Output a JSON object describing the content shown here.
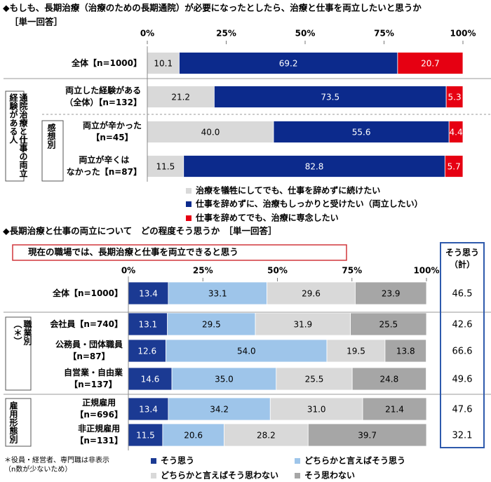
{
  "chart_data": [
    {
      "type": "stacked_bar_horizontal",
      "title": "◆もしも、長期治療（治療のための長期通院）が必要になったとしたら、治療と仕事を両立したいと思うか",
      "subtitle": "［単一回答］",
      "categories": [
        "全体【n=1000】",
        "両立した経験がある\n（全体）【n=132】",
        "両立が辛かった\n【n=45】",
        "両立が辛くは\nなかった【n=87】"
      ],
      "groups": [
        {
          "label": "通院治療と仕事の両立経験がある人"
        },
        {
          "label": "感想別"
        }
      ],
      "xlim": [
        0,
        100
      ],
      "xticks": [
        {
          "value": 0,
          "label": "0%"
        },
        {
          "value": 25,
          "label": "25%"
        },
        {
          "value": 50,
          "label": "50%"
        },
        {
          "value": 75,
          "label": "75%"
        },
        {
          "value": 100,
          "label": "100%"
        }
      ],
      "series": [
        {
          "name": "治療を犠牲にしてでも、仕事を辞めずに続けたい",
          "color": "#d9d9d9",
          "values": [
            10.1,
            21.2,
            40.0,
            11.5
          ],
          "value_labels": [
            "10.1",
            "21.2",
            "40.0",
            "11.5"
          ]
        },
        {
          "name": "仕事を辞めずに、治療もしっかりと受けたい（両立したい）",
          "color": "#0c2a8c",
          "values": [
            69.2,
            73.5,
            55.6,
            82.8
          ],
          "value_labels": [
            "69.2",
            "73.5",
            "55.6",
            "82.8"
          ]
        },
        {
          "name": "仕事を辞めてでも、治療に専念したい",
          "color": "#e60012",
          "values": [
            20.7,
            5.3,
            4.4,
            5.7
          ],
          "value_labels": [
            "20.7",
            "5.3",
            "4.4",
            "5.7"
          ]
        }
      ]
    },
    {
      "type": "stacked_bar_horizontal",
      "title": "◆長期治療と仕事の両立について　どの程度そう思うか　［単一回答］",
      "subtitle": "現在の職場では、長期治療と仕事を両立できると思う",
      "categories": [
        "全体【n=1000】",
        "会社員【n=740】",
        "公務員・団体職員\n【n=87】",
        "自営業・自由業\n【n=137】",
        "正規雇用\n【n=696】",
        "非正規雇用\n【n=131】"
      ],
      "groups": [
        {
          "label": "職業別\n（＊）"
        },
        {
          "label": "雇用形態別"
        }
      ],
      "xlim": [
        0,
        100
      ],
      "xticks": [
        {
          "value": 0,
          "label": "0%"
        },
        {
          "value": 25,
          "label": "25%"
        },
        {
          "value": 50,
          "label": "50%"
        },
        {
          "value": 75,
          "label": "75%"
        },
        {
          "value": 100,
          "label": "100%"
        }
      ],
      "series": [
        {
          "name": "そう思う",
          "color": "#1b3a93",
          "values": [
            13.4,
            13.1,
            12.6,
            14.6,
            13.4,
            11.5
          ],
          "value_labels": [
            "13.4",
            "13.1",
            "12.6",
            "14.6",
            "13.4",
            "11.5"
          ]
        },
        {
          "name": "どちらかと言えばそう思う",
          "color": "#9ec5ea",
          "values": [
            33.1,
            29.5,
            54.0,
            35.0,
            34.2,
            20.6
          ],
          "value_labels": [
            "33.1",
            "29.5",
            "54.0",
            "35.0",
            "34.2",
            "20.6"
          ]
        },
        {
          "name": "どちらかと言えばそう思わない",
          "color": "#d9d9d9",
          "values": [
            29.6,
            31.9,
            19.5,
            25.5,
            31.0,
            28.2
          ],
          "value_labels": [
            "29.6",
            "31.9",
            "19.5",
            "25.5",
            "31.0",
            "28.2"
          ]
        },
        {
          "name": "そう思わない",
          "color": "#a6a6a6",
          "values": [
            23.9,
            25.5,
            13.8,
            24.8,
            21.4,
            39.7
          ],
          "value_labels": [
            "23.9",
            "25.5",
            "13.8",
            "24.8",
            "21.4",
            "39.7"
          ]
        }
      ],
      "totals": {
        "label": "そう思う\n（計）",
        "values": [
          46.5,
          42.6,
          66.6,
          49.6,
          47.6,
          32.1
        ]
      },
      "footnote": "＊役員・経営者、専門職は非表示\n（n数が少ないため）"
    }
  ]
}
